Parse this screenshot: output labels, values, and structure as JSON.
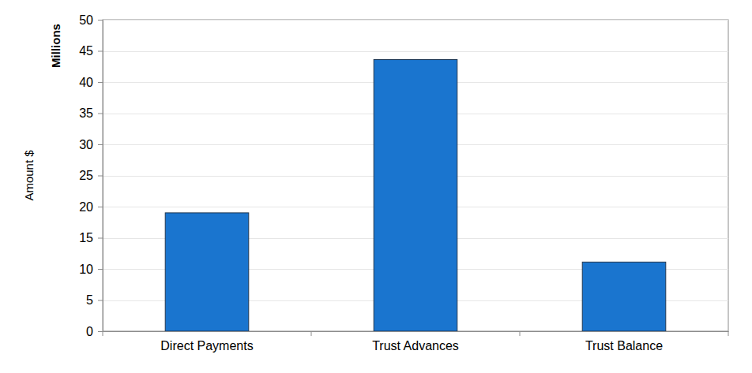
{
  "chart_data": {
    "type": "bar",
    "y_label": "Amount $",
    "annotations": [
      "Millions"
    ],
    "categories": [
      "Direct Payments",
      "Trust Advances",
      "Trust Balance"
    ],
    "values": [
      19.0,
      43.6,
      11.1
    ],
    "color": "#1a75cf",
    "ylim": [
      0,
      50
    ],
    "yticks": [
      0,
      5,
      10,
      15,
      20,
      25,
      30,
      35,
      40,
      45,
      50
    ],
    "grid": true
  }
}
